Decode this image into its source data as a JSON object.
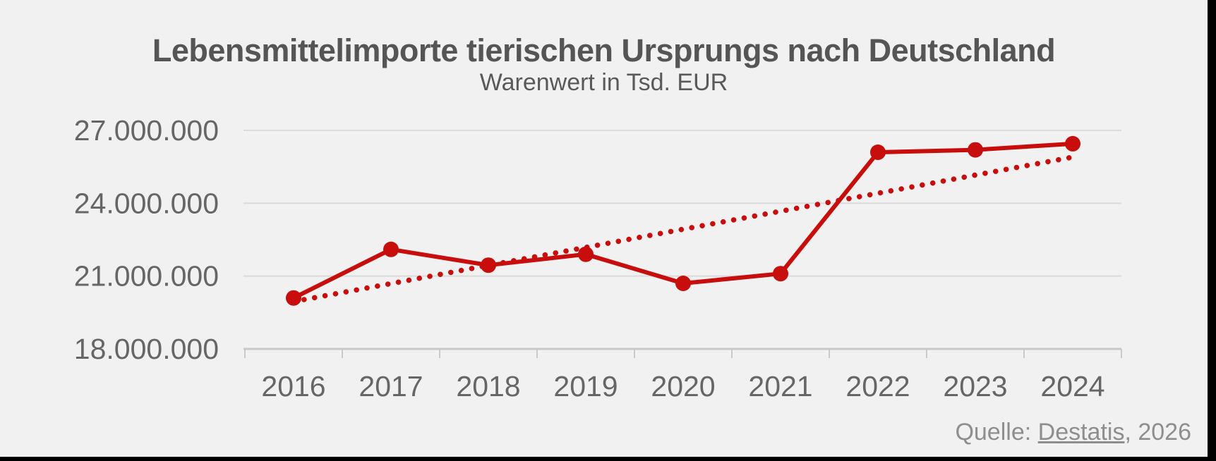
{
  "source": {
    "prefix": "Quelle: ",
    "link_label": "Destatis",
    "suffix": ", 2026"
  },
  "colors": {
    "background": "#f1f1f1",
    "accent_red": "#c80d0d",
    "grid": "#dbdbdb",
    "axis": "#c9c9c9",
    "title_gray": "#555555",
    "axis_label_gray": "#666666",
    "source_gray": "#8e8e8e",
    "frame_black": "#000000"
  },
  "chart_data": {
    "type": "line",
    "title": "Lebensmittelimporte tierischen Ursprungs nach Deutschland",
    "subtitle": "Warenwert in Tsd. EUR",
    "x": [
      "2016",
      "2017",
      "2018",
      "2019",
      "2020",
      "2021",
      "2022",
      "2023",
      "2024"
    ],
    "series": [
      {
        "name": "line",
        "style": "solid",
        "values": [
          20100000,
          22100000,
          21450000,
          21900000,
          20700000,
          21100000,
          26100000,
          26200000,
          26450000
        ]
      },
      {
        "name": "trendline",
        "style": "dotted",
        "values": [
          19950000,
          20690000,
          21440000,
          22180000,
          22930000,
          23670000,
          24410000,
          25160000,
          25900000
        ]
      }
    ],
    "yticks": [
      18000000,
      21000000,
      24000000,
      27000000
    ],
    "ytick_labels": [
      "18.000.000",
      "21.000.000",
      "24.000.000",
      "27.000.000"
    ],
    "ylim": [
      17500000,
      27500000
    ],
    "grid": "horizontal",
    "legend": "none"
  }
}
